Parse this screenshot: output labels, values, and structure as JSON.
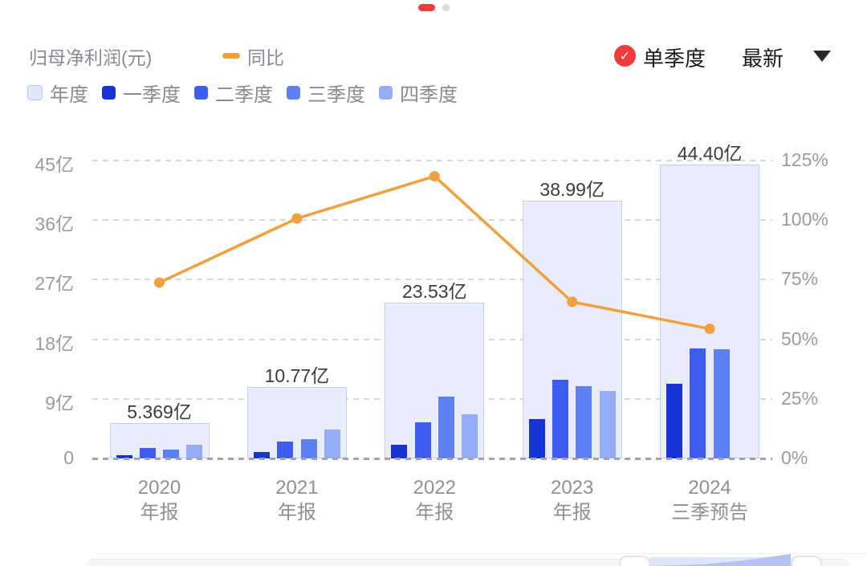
{
  "pagination": {
    "active_dot": "page-1",
    "inactive_dot": "page-2"
  },
  "header": {
    "title": "归母净利润(元)",
    "line_legend_label": "同比",
    "single_quarter_label": "单季度",
    "latest_label": "最新",
    "check_glyph": "✓",
    "accent_red": "#f23b3b"
  },
  "legend_items": [
    {
      "id": "annual",
      "label": "年度",
      "fill": "#e3e9fb",
      "border": "#b9c6f0"
    },
    {
      "id": "q1",
      "label": "一季度",
      "fill": "#1733d6"
    },
    {
      "id": "q2",
      "label": "二季度",
      "fill": "#3d5eee"
    },
    {
      "id": "q3",
      "label": "三季度",
      "fill": "#5f80f2"
    },
    {
      "id": "q4",
      "label": "四季度",
      "fill": "#95adf7"
    }
  ],
  "chart_data": {
    "type": "bar",
    "title": "归母净利润(元)",
    "categories": [
      "2020\n年报",
      "2021\n年报",
      "2022\n年报",
      "2023\n年报",
      "2024\n三季预告"
    ],
    "annual_series": {
      "name": "年度",
      "values": [
        5.369,
        10.77,
        23.53,
        38.99,
        44.4
      ],
      "labels": [
        "5.369亿",
        "10.77亿",
        "23.53亿",
        "38.99亿",
        "44.40亿"
      ],
      "fill": "#e9edfb",
      "border": "#c3cff2"
    },
    "quarter_series": [
      {
        "name": "一季度",
        "color": "#1733d6",
        "values": [
          0.43,
          0.96,
          2.06,
          5.92,
          11.27
        ]
      },
      {
        "name": "二季度",
        "color": "#3d5eee",
        "values": [
          1.55,
          2.53,
          5.48,
          11.89,
          16.65
        ]
      },
      {
        "name": "三季度",
        "color": "#5f80f2",
        "values": [
          1.32,
          2.92,
          9.3,
          10.95,
          16.48
        ]
      },
      {
        "name": "四季度",
        "color": "#95adf7",
        "values": [
          2.07,
          4.36,
          6.69,
          10.23,
          null
        ]
      }
    ],
    "line_series": {
      "name": "同比",
      "color": "#f0a03f",
      "values_pct": [
        73.8,
        100.7,
        118.4,
        65.7,
        54.4
      ]
    },
    "left_axis": {
      "ticks": [
        "0",
        "9亿",
        "18亿",
        "27亿",
        "36亿",
        "45亿"
      ],
      "min": 0,
      "max": 45
    },
    "right_axis": {
      "ticks": [
        "0%",
        "25%",
        "50%",
        "75%",
        "100%",
        "125%"
      ],
      "min": 0,
      "max": 125
    },
    "grid": true,
    "legend_position": "top-left"
  }
}
